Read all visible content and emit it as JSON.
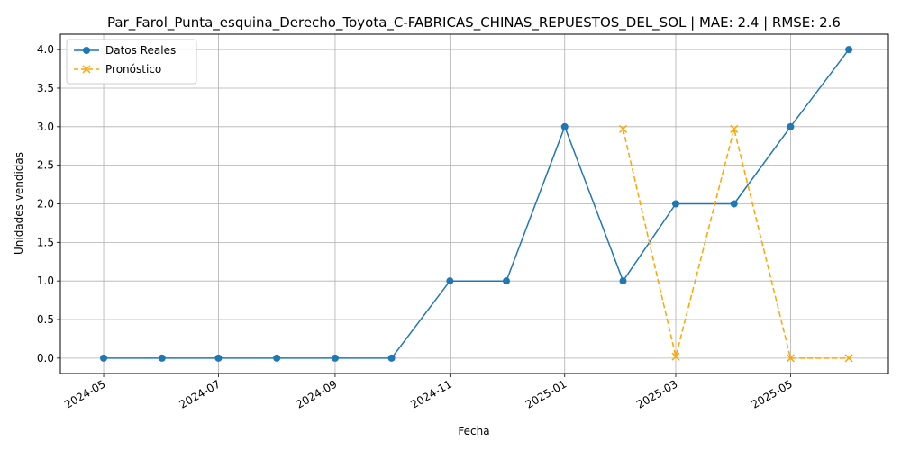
{
  "chart_data": {
    "type": "line",
    "title": "Par_Farol_Punta_esquina_Derecho_Toyota_C-FABRICAS_CHINAS_REPUESTOS_DEL_SOL | MAE: 2.4 | RMSE: 2.6",
    "xlabel": "Fecha",
    "ylabel": "Unidades vendidas",
    "x_ticks": [
      "2024-05",
      "2024-07",
      "2024-09",
      "2024-11",
      "2025-01",
      "2025-03",
      "2025-05"
    ],
    "y_ticks": [
      "0.0",
      "0.5",
      "1.0",
      "1.5",
      "2.0",
      "2.5",
      "3.0",
      "3.5",
      "4.0"
    ],
    "ylim": [
      -0.2,
      4.2
    ],
    "xlim": [
      "2024-04-08",
      "2025-06-22"
    ],
    "grid": true,
    "legend_position": "top-left",
    "series": [
      {
        "name": "Datos Reales",
        "color": "#1f77b4",
        "marker": "circle",
        "line_style": "solid",
        "x": [
          "2024-05-01",
          "2024-06-01",
          "2024-07-01",
          "2024-08-01",
          "2024-09-01",
          "2024-10-01",
          "2024-11-01",
          "2024-12-01",
          "2025-01-01",
          "2025-02-01",
          "2025-03-01",
          "2025-04-01",
          "2025-05-01",
          "2025-06-01"
        ],
        "y": [
          0,
          0,
          0,
          0,
          0,
          0,
          1,
          1,
          3,
          1,
          2,
          2,
          3,
          4
        ]
      },
      {
        "name": "Pronóstico",
        "color": "#ffa500",
        "marker": "x",
        "line_style": "dashed",
        "x": [
          "2025-02-01",
          "2025-03-01",
          "2025-04-01",
          "2025-05-01",
          "2025-06-01"
        ],
        "y": [
          2.97,
          0.02,
          2.97,
          0,
          0
        ]
      }
    ]
  }
}
